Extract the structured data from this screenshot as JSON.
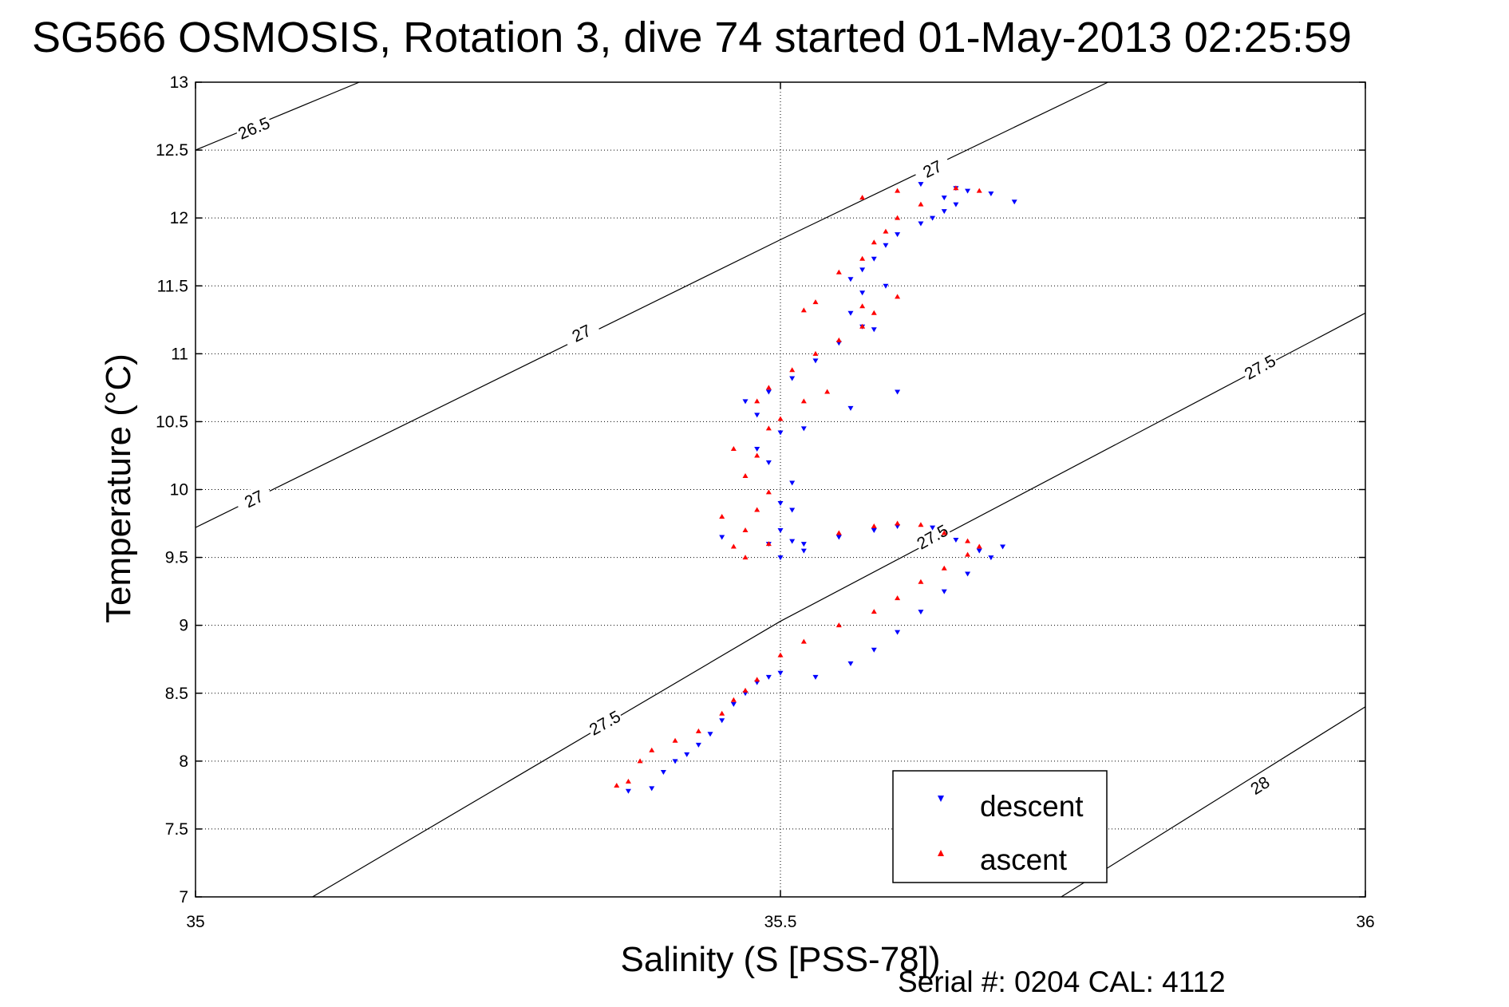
{
  "footer": {
    "serial_text": "Serial #: 0204  CAL: 4112"
  },
  "chart_data": {
    "type": "scatter",
    "title": "SG566 OSMOSIS, Rotation 3, dive 74 started 01-May-2013 02:25:59",
    "xlabel": "Salinity (S [PSS-78])",
    "ylabel": "Temperature (°C)",
    "xlim": [
      35,
      36
    ],
    "ylim": [
      7,
      13
    ],
    "xticks": [
      "35",
      "35.5",
      "36"
    ],
    "yticks": [
      "7",
      "7.5",
      "8",
      "8.5",
      "9",
      "9.5",
      "10",
      "10.5",
      "11",
      "11.5",
      "12",
      "12.5",
      "13"
    ],
    "grid": true,
    "legend_position": "bottom-right",
    "contours": [
      {
        "level": "26.5",
        "points": [
          [
            35.0,
            12.5
          ],
          [
            35.14,
            13.0
          ]
        ],
        "labels": [
          [
            35.05,
            12.66
          ]
        ]
      },
      {
        "level": "27",
        "points": [
          [
            35.0,
            9.72
          ],
          [
            35.5,
            11.84
          ],
          [
            35.78,
            13.0
          ]
        ],
        "labels": [
          [
            35.05,
            9.93
          ],
          [
            35.33,
            11.15
          ],
          [
            35.63,
            12.36
          ]
        ]
      },
      {
        "level": "27.5",
        "points": [
          [
            35.1,
            7.0
          ],
          [
            35.5,
            9.03
          ],
          [
            36.0,
            11.3
          ]
        ],
        "labels": [
          [
            35.35,
            8.28
          ],
          [
            35.63,
            9.65
          ],
          [
            35.91,
            10.9
          ]
        ]
      },
      {
        "level": "28",
        "points": [
          [
            35.74,
            7.0
          ],
          [
            36.0,
            8.4
          ]
        ],
        "labels": [
          [
            35.91,
            7.82
          ]
        ]
      }
    ],
    "series": [
      {
        "name": "descent",
        "color": "#0000ff",
        "marker": "triangle-down",
        "points": [
          [
            35.37,
            7.78
          ],
          [
            35.39,
            7.8
          ],
          [
            35.4,
            7.92
          ],
          [
            35.41,
            8.0
          ],
          [
            35.42,
            8.05
          ],
          [
            35.43,
            8.12
          ],
          [
            35.44,
            8.2
          ],
          [
            35.45,
            8.3
          ],
          [
            35.46,
            8.42
          ],
          [
            35.47,
            8.5
          ],
          [
            35.48,
            8.58
          ],
          [
            35.49,
            8.62
          ],
          [
            35.5,
            8.65
          ],
          [
            35.53,
            8.62
          ],
          [
            35.56,
            8.72
          ],
          [
            35.58,
            8.82
          ],
          [
            35.6,
            8.95
          ],
          [
            35.62,
            9.1
          ],
          [
            35.64,
            9.25
          ],
          [
            35.66,
            9.38
          ],
          [
            35.68,
            9.5
          ],
          [
            35.69,
            9.58
          ],
          [
            35.67,
            9.55
          ],
          [
            35.65,
            9.63
          ],
          [
            35.63,
            9.72
          ],
          [
            35.6,
            9.73
          ],
          [
            35.58,
            9.7
          ],
          [
            35.55,
            9.65
          ],
          [
            35.51,
            9.62
          ],
          [
            35.49,
            9.6
          ],
          [
            35.5,
            9.7
          ],
          [
            35.5,
            9.5
          ],
          [
            35.52,
            9.55
          ],
          [
            35.5,
            9.9
          ],
          [
            35.51,
            10.05
          ],
          [
            35.49,
            10.2
          ],
          [
            35.48,
            10.3
          ],
          [
            35.5,
            10.42
          ],
          [
            35.48,
            10.55
          ],
          [
            35.47,
            10.65
          ],
          [
            35.49,
            10.72
          ],
          [
            35.51,
            10.82
          ],
          [
            35.53,
            10.95
          ],
          [
            35.55,
            11.08
          ],
          [
            35.57,
            11.2
          ],
          [
            35.58,
            11.18
          ],
          [
            35.56,
            11.3
          ],
          [
            35.57,
            11.45
          ],
          [
            35.59,
            11.5
          ],
          [
            35.56,
            11.55
          ],
          [
            35.57,
            11.62
          ],
          [
            35.58,
            11.7
          ],
          [
            35.59,
            11.8
          ],
          [
            35.6,
            11.88
          ],
          [
            35.62,
            11.96
          ],
          [
            35.63,
            12.0
          ],
          [
            35.64,
            12.05
          ],
          [
            35.65,
            12.1
          ],
          [
            35.64,
            12.15
          ],
          [
            35.65,
            12.22
          ],
          [
            35.62,
            12.25
          ],
          [
            35.66,
            12.2
          ],
          [
            35.68,
            12.18
          ],
          [
            35.7,
            12.12
          ],
          [
            35.6,
            10.72
          ],
          [
            35.56,
            10.6
          ],
          [
            35.52,
            10.45
          ],
          [
            35.51,
            9.85
          ],
          [
            35.52,
            9.6
          ],
          [
            35.45,
            9.65
          ]
        ]
      },
      {
        "name": "ascent",
        "color": "#ff0000",
        "marker": "triangle-up",
        "points": [
          [
            35.36,
            7.82
          ],
          [
            35.37,
            7.85
          ],
          [
            35.38,
            8.0
          ],
          [
            35.39,
            8.08
          ],
          [
            35.41,
            8.15
          ],
          [
            35.43,
            8.22
          ],
          [
            35.45,
            8.35
          ],
          [
            35.46,
            8.45
          ],
          [
            35.47,
            8.52
          ],
          [
            35.48,
            8.6
          ],
          [
            35.5,
            8.78
          ],
          [
            35.52,
            8.88
          ],
          [
            35.55,
            9.0
          ],
          [
            35.58,
            9.1
          ],
          [
            35.6,
            9.2
          ],
          [
            35.62,
            9.32
          ],
          [
            35.64,
            9.42
          ],
          [
            35.66,
            9.52
          ],
          [
            35.67,
            9.58
          ],
          [
            35.66,
            9.62
          ],
          [
            35.64,
            9.68
          ],
          [
            35.62,
            9.74
          ],
          [
            35.6,
            9.75
          ],
          [
            35.58,
            9.73
          ],
          [
            35.55,
            9.68
          ],
          [
            35.49,
            9.6
          ],
          [
            35.47,
            9.5
          ],
          [
            35.46,
            9.58
          ],
          [
            35.47,
            9.7
          ],
          [
            35.48,
            9.85
          ],
          [
            35.49,
            9.98
          ],
          [
            35.47,
            10.1
          ],
          [
            35.48,
            10.25
          ],
          [
            35.46,
            10.3
          ],
          [
            35.49,
            10.45
          ],
          [
            35.5,
            10.52
          ],
          [
            35.48,
            10.65
          ],
          [
            35.49,
            10.75
          ],
          [
            35.51,
            10.88
          ],
          [
            35.53,
            11.0
          ],
          [
            35.55,
            11.1
          ],
          [
            35.57,
            11.2
          ],
          [
            35.58,
            11.3
          ],
          [
            35.6,
            11.42
          ],
          [
            35.57,
            11.35
          ],
          [
            35.53,
            11.38
          ],
          [
            35.52,
            11.32
          ],
          [
            35.55,
            11.6
          ],
          [
            35.57,
            11.7
          ],
          [
            35.58,
            11.82
          ],
          [
            35.59,
            11.9
          ],
          [
            35.6,
            12.0
          ],
          [
            35.62,
            12.1
          ],
          [
            35.6,
            12.2
          ],
          [
            35.57,
            12.15
          ],
          [
            35.65,
            12.22
          ],
          [
            35.67,
            12.2
          ],
          [
            35.52,
            10.65
          ],
          [
            35.54,
            10.72
          ],
          [
            35.45,
            9.8
          ]
        ]
      }
    ]
  }
}
